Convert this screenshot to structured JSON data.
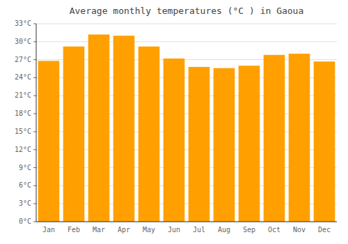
{
  "chart_data": {
    "type": "bar",
    "title": "Average monthly temperatures (°C ) in Gaoua",
    "categories": [
      "Jan",
      "Feb",
      "Mar",
      "Apr",
      "May",
      "Jun",
      "Jul",
      "Aug",
      "Sep",
      "Oct",
      "Nov",
      "Dec"
    ],
    "values": [
      26.8,
      29.2,
      31.2,
      31.0,
      29.2,
      27.2,
      25.8,
      25.6,
      26.0,
      27.8,
      28.0,
      26.7
    ],
    "color": "#FFA000",
    "ylim": [
      0,
      33
    ],
    "yticks": [
      {
        "value": 0,
        "label": "0°C"
      },
      {
        "value": 3,
        "label": "3°C"
      },
      {
        "value": 6,
        "label": "6°C"
      },
      {
        "value": 9,
        "label": "9°C"
      },
      {
        "value": 12,
        "label": "12°C"
      },
      {
        "value": 15,
        "label": "15°C"
      },
      {
        "value": 18,
        "label": "18°C"
      },
      {
        "value": 21,
        "label": "21°C"
      },
      {
        "value": 24,
        "label": "24°C"
      },
      {
        "value": 27,
        "label": "27°C"
      },
      {
        "value": 30,
        "label": "30°C"
      },
      {
        "value": 33,
        "label": "33°C"
      }
    ],
    "grid": true
  }
}
